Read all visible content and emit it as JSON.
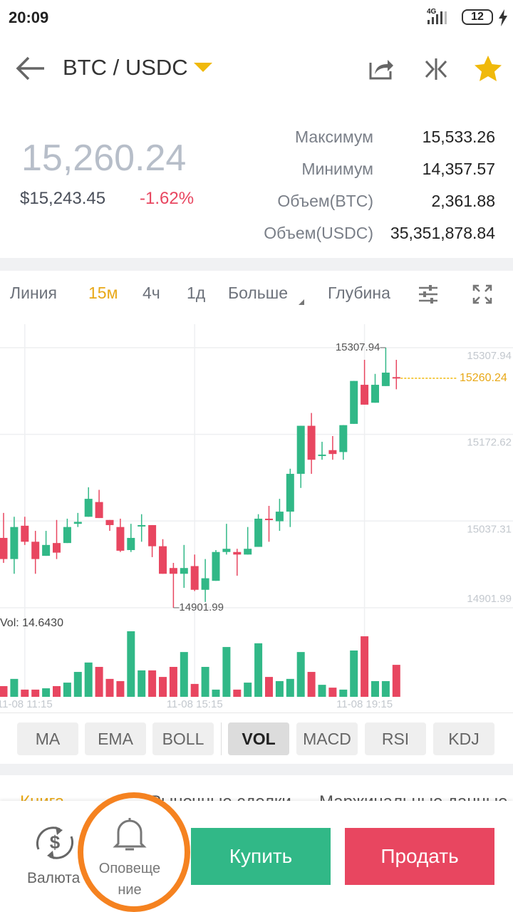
{
  "status_bar": {
    "time": "20:09",
    "network": "4G",
    "battery": "12"
  },
  "header": {
    "pair": "BTC / USDC"
  },
  "ticker": {
    "price": "15,260.24",
    "fiat": "$15,243.45",
    "change": "-1.62%",
    "stats": [
      {
        "label": "Максимум",
        "value": "15,533.26"
      },
      {
        "label": "Минимум",
        "value": "14,357.57"
      },
      {
        "label": "Объем(BTC)",
        "value": "2,361.88"
      },
      {
        "label": "Объем(USDC)",
        "value": "35,351,878.84"
      }
    ]
  },
  "tabs": [
    "Линия",
    "15м",
    "4ч",
    "1д",
    "Больше",
    "Глубина"
  ],
  "chart_data": {
    "type": "candlestick",
    "categories": [
      null,
      null,
      "11-08 11:15",
      null,
      null,
      null,
      null,
      null,
      null,
      null,
      null,
      null,
      null,
      null,
      null,
      null,
      null,
      null,
      "11-08 15:15",
      null,
      null,
      null,
      null,
      null,
      null,
      null,
      null,
      null,
      null,
      null,
      null,
      null,
      null,
      null,
      "11-08 19:15",
      null,
      null,
      null
    ],
    "open": [
      15011,
      14978,
      15030,
      15005,
      14983,
      15003,
      15003,
      15033,
      15044,
      15067,
      15039,
      15028,
      14992,
      15029,
      15031,
      14998,
      14964,
      14955,
      14967,
      14930,
      14944,
      14989,
      14989,
      14985,
      14997,
      15041,
      15037,
      15052,
      15111,
      15186,
      15139,
      15148,
      15145,
      15189,
      15250,
      15222,
      15248,
      15262
    ],
    "high": [
      15050,
      15044,
      15044,
      15022,
      15022,
      15039,
      15041,
      15050,
      15090,
      15086,
      15039,
      15041,
      15033,
      15048,
      15031,
      15009,
      14972,
      15000,
      14985,
      14978,
      14992,
      15033,
      14994,
      15028,
      15048,
      15061,
      15072,
      15119,
      15186,
      15206,
      15161,
      15170,
      15187,
      15256,
      15289,
      15267,
      15307.94,
      15289
    ],
    "low": [
      14972,
      14955,
      15000,
      14955,
      14983,
      14978,
      15003,
      15028,
      15044,
      15042,
      15022,
      14989,
      14989,
      15005,
      14981,
      14955,
      14901.99,
      14933,
      14928,
      14911,
      14944,
      14985,
      14952,
      14985,
      14997,
      15005,
      15022,
      15028,
      15089,
      15111,
      15133,
      15133,
      15133,
      15189,
      15219,
      15222,
      15248,
      15243
    ],
    "close": [
      14978,
      15028,
      15005,
      14978,
      15000,
      14988,
      15028,
      15036,
      15072,
      15042,
      15031,
      14991,
      15011,
      15031,
      14998,
      14955,
      14955,
      14964,
      14930,
      14948,
      14989,
      14994,
      14985,
      14994,
      15041,
      15039,
      15052,
      15111,
      15186,
      15133,
      15141,
      15142,
      15187,
      15256,
      15219,
      15250,
      15269,
      15260.24
    ],
    "volume": [
      4.9,
      8.2,
      3.3,
      3.3,
      3.9,
      4.9,
      6.5,
      11.4,
      15.7,
      13.7,
      8.2,
      7.2,
      30.0,
      12.1,
      12.1,
      9.1,
      13.7,
      20.5,
      5.9,
      13.7,
      3.3,
      22.8,
      3.3,
      6.5,
      24.5,
      9.1,
      7.2,
      8.2,
      20.5,
      11.4,
      5.5,
      4.2,
      3.3,
      21.2,
      27.7,
      7.2,
      7.2,
      14.643
    ],
    "ylim": [
      14888.6,
      15344.6
    ],
    "yticks": [
      15307.94,
      15172.62,
      15037.31,
      14901.99
    ],
    "vlim": [
      0,
      30
    ],
    "current_price": 15260.24,
    "high_label": "15307.94",
    "low_label": "14901.99",
    "volume_label": "Vol: 14.6430",
    "up_color": "#31b887",
    "down_color": "#e84660",
    "grid": true
  },
  "indicators": [
    "MA",
    "EMA",
    "BOLL",
    "VOL",
    "MACD",
    "RSI",
    "KDJ"
  ],
  "sections": [
    "Книга",
    "Рыночные сделки",
    "Маржинальные данные"
  ],
  "bottom_bar": {
    "currency": "Валюта",
    "alert_lines": [
      "Оповеще",
      "ние"
    ],
    "buy": "Купить",
    "sell": "Продать"
  }
}
